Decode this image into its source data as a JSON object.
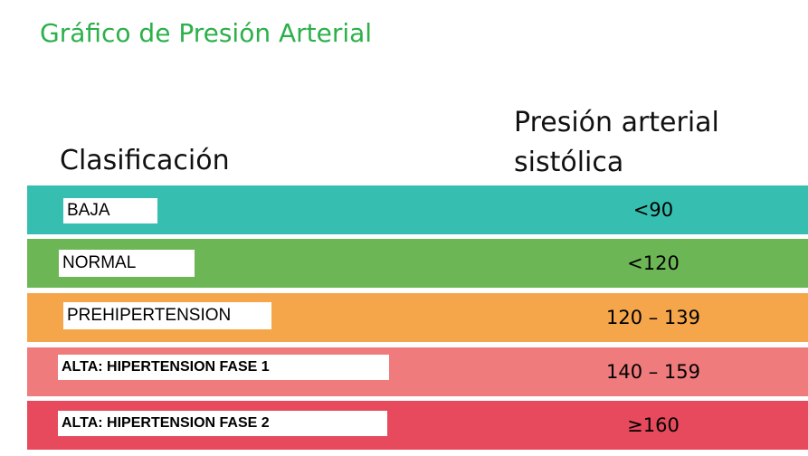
{
  "title": "Gráfico de Presión Arterial",
  "headers": {
    "classification": "Clasificación",
    "systolic_line1": "Presión arterial",
    "systolic_line2": "sistólica"
  },
  "rows": [
    {
      "label": "BAJA",
      "value": "<90",
      "color": "#36bfb0"
    },
    {
      "label": "NORMAL",
      "value": "<120",
      "color": "#6db656"
    },
    {
      "label": "PREHIPERTENSION",
      "value": "120 – 139",
      "color": "#f6a64a"
    },
    {
      "label": "ALTA: HIPERTENSION FASE 1",
      "value": "140 – 159",
      "color": "#ef7b7d"
    },
    {
      "label": "ALTA: HIPERTENSION FASE 2",
      "value": "≥160",
      "color": "#e64a5c"
    }
  ]
}
